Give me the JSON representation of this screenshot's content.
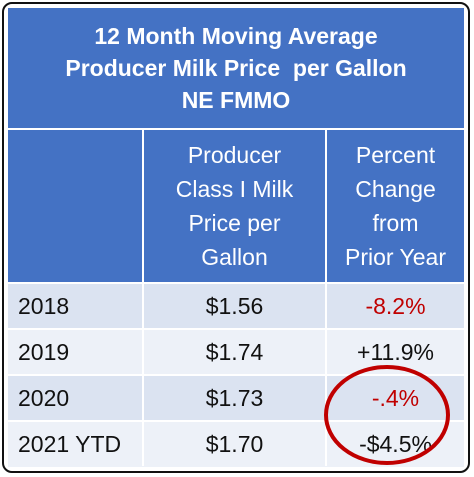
{
  "chart_data": {
    "type": "table",
    "title_lines": [
      "12 Month Moving Average",
      "Producer Milk Price  per Gallon",
      "NE FMMO"
    ],
    "columns": [
      "",
      [
        "Producer",
        "Class I Milk",
        "Price per",
        "Gallon"
      ],
      [
        "Percent",
        "Change",
        "from",
        "Prior Year"
      ]
    ],
    "rows": [
      {
        "year": "2018",
        "price": "$1.56",
        "change": "-8.2%",
        "change_color": "#c00000"
      },
      {
        "year": "2019",
        "price": "$1.74",
        "change": "+11.9%",
        "change_color": "#111111"
      },
      {
        "year": "2020",
        "price": "$1.73",
        "change": "-.4%",
        "change_color": "#c00000"
      },
      {
        "year": "2021 YTD",
        "price": "$1.70",
        "change": "-$4.5%",
        "change_color": "#111111"
      }
    ],
    "values": {
      "price_per_gallon": [
        1.56,
        1.74,
        1.73,
        1.7
      ],
      "percent_change": [
        -8.2,
        11.9,
        -0.4,
        -4.5
      ]
    }
  },
  "colors": {
    "header_bg": "#4472c4",
    "row_dark": "#dbe3f1",
    "row_light": "#edf1f8",
    "negative_text": "#c00000",
    "annotation_circle": "#c00000"
  },
  "annotations": [
    {
      "type": "circle",
      "description_target": "2020 and 2021 YTD percent change cells",
      "color": "#c00000"
    }
  ]
}
